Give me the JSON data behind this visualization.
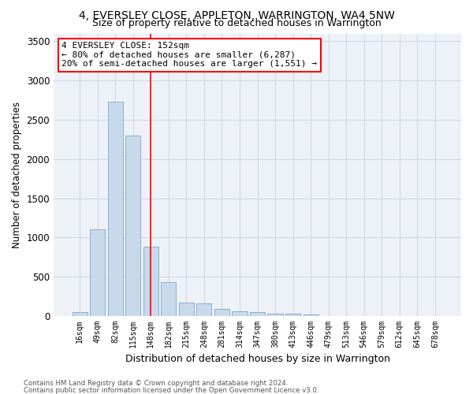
{
  "title1": "4, EVERSLEY CLOSE, APPLETON, WARRINGTON, WA4 5NW",
  "title2": "Size of property relative to detached houses in Warrington",
  "xlabel": "Distribution of detached houses by size in Warrington",
  "ylabel": "Number of detached properties",
  "categories": [
    "16sqm",
    "49sqm",
    "82sqm",
    "115sqm",
    "148sqm",
    "182sqm",
    "215sqm",
    "248sqm",
    "281sqm",
    "314sqm",
    "347sqm",
    "380sqm",
    "413sqm",
    "446sqm",
    "479sqm",
    "513sqm",
    "546sqm",
    "579sqm",
    "612sqm",
    "645sqm",
    "678sqm"
  ],
  "values": [
    50,
    1100,
    2730,
    2295,
    880,
    430,
    170,
    165,
    90,
    65,
    55,
    30,
    30,
    25,
    0,
    0,
    0,
    0,
    0,
    0,
    0
  ],
  "bar_color": "#c9d9ec",
  "bar_edge_color": "#7aa6cc",
  "grid_color": "#d0d8e8",
  "background_color": "#eef2f8",
  "vline_x_index": 4,
  "vline_color": "red",
  "annotation_text": "4 EVERSLEY CLOSE: 152sqm\n← 80% of detached houses are smaller (6,287)\n20% of semi-detached houses are larger (1,551) →",
  "annotation_box_color": "white",
  "annotation_box_edge": "red",
  "ylim": [
    0,
    3600
  ],
  "yticks": [
    0,
    500,
    1000,
    1500,
    2000,
    2500,
    3000,
    3500
  ],
  "footer1": "Contains HM Land Registry data © Crown copyright and database right 2024.",
  "footer2": "Contains public sector information licensed under the Open Government Licence v3.0.",
  "figsize": [
    6.0,
    5.0
  ],
  "dpi": 100
}
